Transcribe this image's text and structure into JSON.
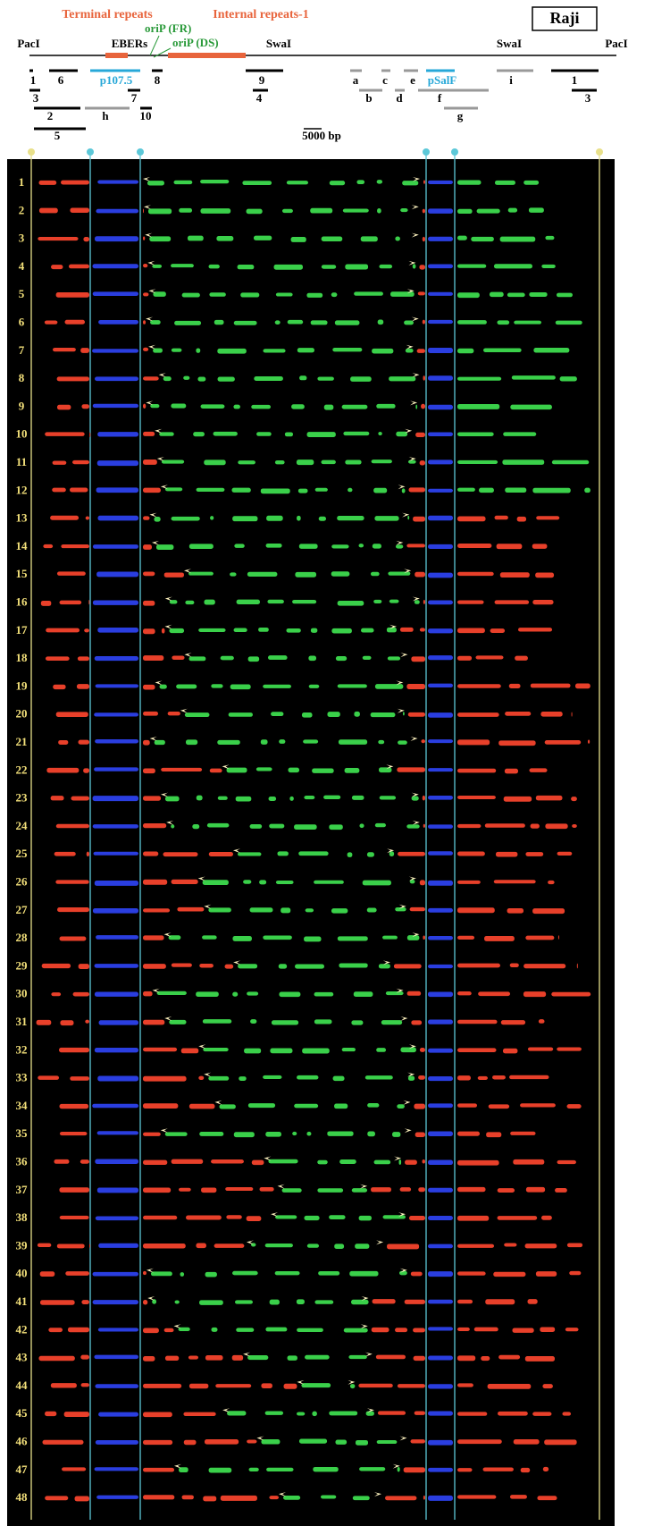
{
  "header": {
    "title": "Raji",
    "regions": [
      "Terminal repeats",
      "Internal repeats-1"
    ],
    "sites": [
      "PacI",
      "EBERs",
      "oriP (FR)",
      "oriP (DS)",
      "SwaI",
      "SwaI",
      "PacI"
    ],
    "scale": "5000 bp"
  },
  "probes": [
    "1",
    "6",
    "p107.5",
    "8",
    "9",
    "a",
    "c",
    "e",
    "pSalF",
    "i",
    "1",
    "3",
    "7",
    "4",
    "b",
    "d",
    "f",
    "3",
    "2",
    "h",
    "10",
    "g",
    "5"
  ],
  "rows": [
    "1",
    "2",
    "3",
    "4",
    "5",
    "6",
    "7",
    "8",
    "9",
    "10",
    "11",
    "12",
    "13",
    "14",
    "15",
    "16",
    "17",
    "18",
    "19",
    "20",
    "21",
    "22",
    "23",
    "24",
    "25",
    "26",
    "27",
    "28",
    "29",
    "30",
    "31",
    "32",
    "33",
    "34",
    "35",
    "36",
    "37",
    "38",
    "39",
    "40",
    "41",
    "42",
    "43",
    "44",
    "45",
    "46",
    "47",
    "48"
  ]
}
